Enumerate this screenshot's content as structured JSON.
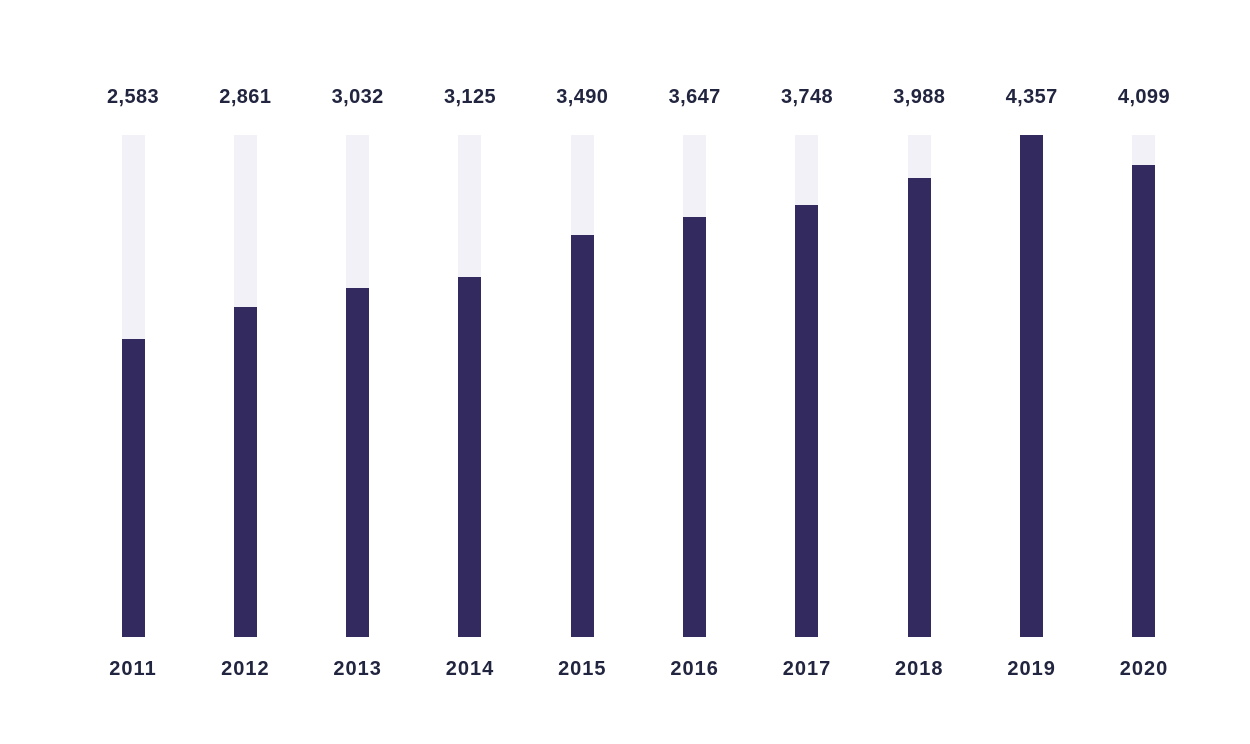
{
  "page": {
    "background_color": "#ffffff",
    "text_color": "#22253F"
  },
  "chart_data": {
    "type": "bar",
    "title": "",
    "xlabel": "",
    "ylabel": "",
    "categories": [
      "2011",
      "2012",
      "2013",
      "2014",
      "2015",
      "2016",
      "2017",
      "2018",
      "2019",
      "2020"
    ],
    "values": [
      2583,
      2861,
      3032,
      3125,
      3490,
      3647,
      3748,
      3988,
      4357,
      4099
    ],
    "value_labels": [
      "2,583",
      "2,861",
      "3,032",
      "3,125",
      "3,490",
      "3,647",
      "3,748",
      "3,988",
      "4,357",
      "4,099"
    ],
    "max_value": 4357,
    "ylim": [
      0,
      4357
    ],
    "grid": false,
    "legend": false,
    "axis_lines": false,
    "data_labels_position": "above-bars",
    "category_labels_position": "below-bars",
    "colors": {
      "bar_fill": "#332B60",
      "bar_track": "#F2F1F8",
      "label_text": "#22253F"
    }
  }
}
